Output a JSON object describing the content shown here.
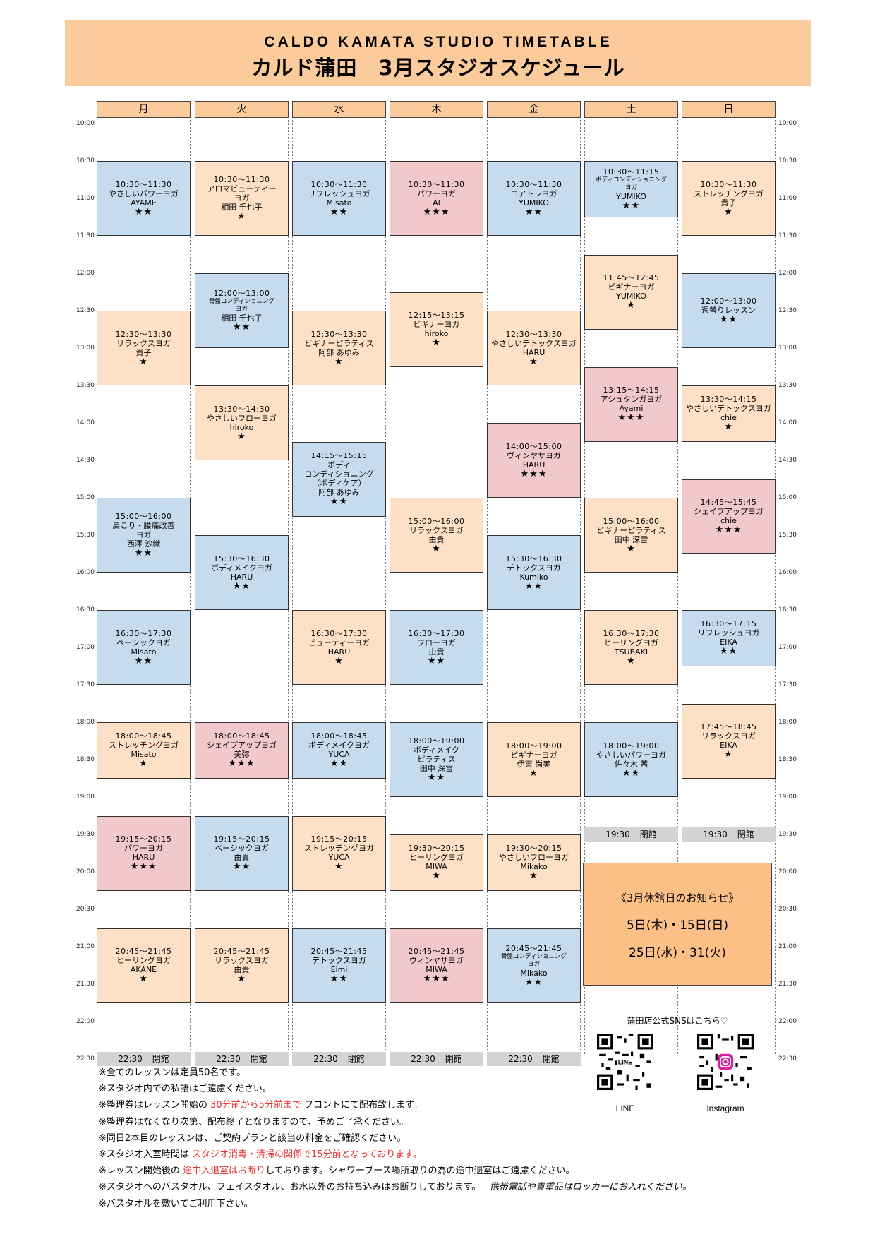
{
  "header": {
    "title_en": "CALDO  KAMATA  STUDIO  TIMETABLE",
    "title_jp": "カルド蒲田　3月スタジオスケジュール"
  },
  "days": [
    "月",
    "火",
    "水",
    "木",
    "金",
    "土",
    "日"
  ],
  "times": [
    "10:00",
    "10:30",
    "11:00",
    "11:30",
    "12:00",
    "12:30",
    "13:00",
    "13:30",
    "14:00",
    "14:30",
    "15:00",
    "15:30",
    "16:00",
    "16:30",
    "17:00",
    "17:30",
    "18:00",
    "18:30",
    "19:00",
    "19:30",
    "20:00",
    "20:30",
    "21:00",
    "21:30",
    "22:00",
    "22:30"
  ],
  "colors": {
    "blue": "#c7dbef",
    "orange": "#fde0c5",
    "pink": "#f2c9cb",
    "header": "#fbcb9c",
    "notice": "#fcbf86",
    "closed": "#d3d3d3",
    "red": "#e53030"
  },
  "lessons": [
    {
      "day": 0,
      "start": "10:30",
      "end": "11:30",
      "color": "blue",
      "time": "10:30～11:30",
      "name": [
        "やさしいパワーヨガ"
      ],
      "instructor": "AYAME",
      "stars": "★★"
    },
    {
      "day": 0,
      "start": "12:30",
      "end": "13:30",
      "color": "orange",
      "time": "12:30～13:30",
      "name": [
        "リラックスヨガ"
      ],
      "instructor": "貴子",
      "stars": "★"
    },
    {
      "day": 0,
      "start": "15:00",
      "end": "16:00",
      "color": "blue",
      "time": "15:00～16:00",
      "name": [
        "肩こり・腰痛改善",
        "ヨガ"
      ],
      "instructor": "西澤 沙織",
      "stars": "★★"
    },
    {
      "day": 0,
      "start": "16:30",
      "end": "17:30",
      "color": "blue",
      "time": "16:30～17:30",
      "name": [
        "ベーシックヨガ"
      ],
      "instructor": "Misato",
      "stars": "★★"
    },
    {
      "day": 0,
      "start": "18:00",
      "end": "18:45",
      "color": "orange",
      "time": "18:00～18:45",
      "name": [
        "ストレッチングヨガ"
      ],
      "instructor": "Misato",
      "stars": "★"
    },
    {
      "day": 0,
      "start": "19:15",
      "end": "20:15",
      "color": "pink",
      "time": "19:15～20:15",
      "name": [
        "パワーヨガ"
      ],
      "instructor": "HARU",
      "stars": "★★★"
    },
    {
      "day": 0,
      "start": "20:45",
      "end": "21:45",
      "color": "orange",
      "time": "20:45～21:45",
      "name": [
        "ヒーリングヨガ"
      ],
      "instructor": "AKANE",
      "stars": "★"
    },
    {
      "day": 1,
      "start": "10:30",
      "end": "11:30",
      "color": "orange",
      "time": "10:30～11:30",
      "name": [
        "アロマビューティー",
        "ヨガ"
      ],
      "instructor": "相田 千也子",
      "stars": "★"
    },
    {
      "day": 1,
      "start": "12:00",
      "end": "13:00",
      "color": "blue",
      "time": "12:00～13:00",
      "name": [
        "骨盤コンディショニング",
        "ヨガ"
      ],
      "small": true,
      "instructor": "相田 千也子",
      "stars": "★★"
    },
    {
      "day": 1,
      "start": "13:30",
      "end": "14:30",
      "color": "orange",
      "time": "13:30～14:30",
      "name": [
        "やさしいフローヨガ"
      ],
      "instructor": "hiroko",
      "stars": "★"
    },
    {
      "day": 1,
      "start": "15:30",
      "end": "16:30",
      "color": "blue",
      "time": "15:30～16:30",
      "name": [
        "ボディメイクヨガ"
      ],
      "instructor": "HARU",
      "stars": "★★"
    },
    {
      "day": 1,
      "start": "18:00",
      "end": "18:45",
      "color": "pink",
      "time": "18:00～18:45",
      "name": [
        "シェイプアップヨガ"
      ],
      "instructor": "美弥",
      "stars": "★★★"
    },
    {
      "day": 1,
      "start": "19:15",
      "end": "20:15",
      "color": "blue",
      "time": "19:15～20:15",
      "name": [
        "ベーシックヨガ"
      ],
      "instructor": "由貴",
      "stars": "★★"
    },
    {
      "day": 1,
      "start": "20:45",
      "end": "21:45",
      "color": "orange",
      "time": "20:45～21:45",
      "name": [
        "リラックスヨガ"
      ],
      "instructor": "由貴",
      "stars": "★"
    },
    {
      "day": 2,
      "start": "10:30",
      "end": "11:30",
      "color": "blue",
      "time": "10:30～11:30",
      "name": [
        "リフレッシュヨガ"
      ],
      "instructor": "Misato",
      "stars": "★★"
    },
    {
      "day": 2,
      "start": "12:30",
      "end": "13:30",
      "color": "orange",
      "time": "12:30～13:30",
      "name": [
        "ビギナーピラティス"
      ],
      "instructor": "阿部 あゆみ",
      "stars": "★"
    },
    {
      "day": 2,
      "start": "14:15",
      "end": "15:15",
      "color": "blue",
      "time": "14:15～15:15",
      "name": [
        "ボディ",
        "コンディショニング",
        "（ボディケア）"
      ],
      "instructor": "阿部 あゆみ",
      "stars": "★★"
    },
    {
      "day": 2,
      "start": "16:30",
      "end": "17:30",
      "color": "orange",
      "time": "16:30～17:30",
      "name": [
        "ビューティーヨガ"
      ],
      "instructor": "HARU",
      "stars": "★"
    },
    {
      "day": 2,
      "start": "18:00",
      "end": "18:45",
      "color": "blue",
      "time": "18:00～18:45",
      "name": [
        "ボディメイクヨガ"
      ],
      "instructor": "YUCA",
      "stars": "★★"
    },
    {
      "day": 2,
      "start": "19:15",
      "end": "20:15",
      "color": "orange",
      "time": "19:15～20:15",
      "name": [
        "ストレッチングヨガ"
      ],
      "instructor": "YUCA",
      "stars": "★"
    },
    {
      "day": 2,
      "start": "20:45",
      "end": "21:45",
      "color": "blue",
      "time": "20:45～21:45",
      "name": [
        "デトックスヨガ"
      ],
      "instructor": "Eimi",
      "stars": "★★"
    },
    {
      "day": 3,
      "start": "10:30",
      "end": "11:30",
      "color": "pink",
      "time": "10:30～11:30",
      "name": [
        "パワーヨガ"
      ],
      "instructor": "AI",
      "stars": "★★★"
    },
    {
      "day": 3,
      "start": "12:15",
      "end": "13:15",
      "color": "orange",
      "time": "12:15～13:15",
      "name": [
        "ビギナーヨガ"
      ],
      "instructor": "hiroko",
      "stars": "★"
    },
    {
      "day": 3,
      "start": "15:00",
      "end": "16:00",
      "color": "orange",
      "time": "15:00～16:00",
      "name": [
        "リラックスヨガ"
      ],
      "instructor": "由貴",
      "stars": "★"
    },
    {
      "day": 3,
      "start": "16:30",
      "end": "17:30",
      "color": "blue",
      "time": "16:30～17:30",
      "name": [
        "フローヨガ"
      ],
      "instructor": "由貴",
      "stars": "★★"
    },
    {
      "day": 3,
      "start": "18:00",
      "end": "19:00",
      "color": "blue",
      "time": "18:00～19:00",
      "name": [
        "ボディメイク",
        "ピラティス"
      ],
      "instructor": "田中 深雪",
      "stars": "★★"
    },
    {
      "day": 3,
      "start": "19:30",
      "end": "20:15",
      "color": "orange",
      "time": "19:30～20:15",
      "name": [
        "ヒーリングヨガ"
      ],
      "instructor": "MIWA",
      "stars": "★"
    },
    {
      "day": 3,
      "start": "20:45",
      "end": "21:45",
      "color": "pink",
      "time": "20:45～21:45",
      "name": [
        "ヴィンヤサヨガ"
      ],
      "instructor": "MIWA",
      "stars": "★★★"
    },
    {
      "day": 4,
      "start": "10:30",
      "end": "11:30",
      "color": "blue",
      "time": "10:30～11:30",
      "name": [
        "コアトレヨガ"
      ],
      "instructor": "YUMIKO",
      "stars": "★★"
    },
    {
      "day": 4,
      "start": "12:30",
      "end": "13:30",
      "color": "orange",
      "time": "12:30～13:30",
      "name": [
        "やさしいデトックスヨガ"
      ],
      "instructor": "HARU",
      "stars": "★"
    },
    {
      "day": 4,
      "start": "14:00",
      "end": "15:00",
      "color": "pink",
      "time": "14:00～15:00",
      "name": [
        "ヴィンヤサヨガ"
      ],
      "instructor": "HARU",
      "stars": "★★★"
    },
    {
      "day": 4,
      "start": "15:30",
      "end": "16:30",
      "color": "blue",
      "time": "15:30～16:30",
      "name": [
        "デトックスヨガ"
      ],
      "instructor": "Kumiko",
      "stars": "★★"
    },
    {
      "day": 4,
      "start": "18:00",
      "end": "19:00",
      "color": "orange",
      "time": "18:00～19:00",
      "name": [
        "ビギナーヨガ"
      ],
      "instructor": "伊東 尚美",
      "stars": "★"
    },
    {
      "day": 4,
      "start": "19:30",
      "end": "20:15",
      "color": "orange",
      "time": "19:30～20:15",
      "name": [
        "やさしいフローヨガ"
      ],
      "instructor": "Mikako",
      "stars": "★"
    },
    {
      "day": 4,
      "start": "20:45",
      "end": "21:45",
      "color": "blue",
      "time": "20:45～21:45",
      "name": [
        "骨盤コンディショニング",
        "ヨガ"
      ],
      "small": true,
      "instructor": "Mikako",
      "stars": "★★"
    },
    {
      "day": 5,
      "start": "10:30",
      "end": "11:15",
      "color": "blue",
      "time": "10:30～11:15",
      "name": [
        "ボディコンディショニング",
        "ヨガ"
      ],
      "small": true,
      "instructor": "YUMIKO",
      "stars": "★★"
    },
    {
      "day": 5,
      "start": "11:45",
      "end": "12:45",
      "color": "orange",
      "time": "11:45～12:45",
      "name": [
        "ビギナーヨガ"
      ],
      "instructor": "YUMIKO",
      "stars": "★"
    },
    {
      "day": 5,
      "start": "13:15",
      "end": "14:15",
      "color": "pink",
      "time": "13:15～14:15",
      "name": [
        "アシュタンガヨガ"
      ],
      "instructor": "Ayami",
      "stars": "★★★"
    },
    {
      "day": 5,
      "start": "15:00",
      "end": "16:00",
      "color": "orange",
      "time": "15:00～16:00",
      "name": [
        "ビギナーピラティス"
      ],
      "instructor": "田中 深雪",
      "stars": "★"
    },
    {
      "day": 5,
      "start": "16:30",
      "end": "17:30",
      "color": "orange",
      "time": "16:30～17:30",
      "name": [
        "ヒーリングヨガ"
      ],
      "instructor": "TSUBAKI",
      "stars": "★"
    },
    {
      "day": 5,
      "start": "18:00",
      "end": "19:00",
      "color": "blue",
      "time": "18:00～19:00",
      "name": [
        "やさしいパワーヨガ"
      ],
      "instructor": "佐々木 茜",
      "stars": "★★"
    },
    {
      "day": 6,
      "start": "10:30",
      "end": "11:30",
      "color": "orange",
      "time": "10:30～11:30",
      "name": [
        "ストレッチングヨガ"
      ],
      "instructor": "貴子",
      "stars": "★"
    },
    {
      "day": 6,
      "start": "12:00",
      "end": "13:00",
      "color": "blue",
      "time": "12:00～13:00",
      "name": [
        "週替りレッスン"
      ],
      "instructor": "",
      "stars": "★★"
    },
    {
      "day": 6,
      "start": "13:30",
      "end": "14:15",
      "color": "orange",
      "time": "13:30～14:15",
      "name": [
        "やさしいデトックスヨガ"
      ],
      "instructor": "chie",
      "stars": "★"
    },
    {
      "day": 6,
      "start": "14:45",
      "end": "15:45",
      "color": "pink",
      "time": "14:45～15:45",
      "name": [
        "シェイプアップヨガ"
      ],
      "instructor": "chie",
      "stars": "★★★"
    },
    {
      "day": 6,
      "start": "16:30",
      "end": "17:15",
      "color": "blue",
      "time": "16:30～17:15",
      "name": [
        "リフレッシュヨガ"
      ],
      "instructor": "EIKA",
      "stars": "★★"
    },
    {
      "day": 6,
      "start": "17:45",
      "end": "18:45",
      "color": "orange",
      "time": "17:45～18:45",
      "name": [
        "リラックスヨガ"
      ],
      "instructor": "EIKA",
      "stars": "★"
    }
  ],
  "closings": [
    {
      "day": 0,
      "time": "22:30",
      "label": "閉館"
    },
    {
      "day": 1,
      "time": "22:30",
      "label": "閉館"
    },
    {
      "day": 2,
      "time": "22:30",
      "label": "閉館"
    },
    {
      "day": 3,
      "time": "22:30",
      "label": "閉館"
    },
    {
      "day": 4,
      "time": "22:30",
      "label": "閉館"
    },
    {
      "day": 5,
      "time": "19:30",
      "label": "閉館"
    },
    {
      "day": 6,
      "time": "19:30",
      "label": "閉館"
    }
  ],
  "notice": {
    "title": "《3月休館日のお知らせ》",
    "dates1": "5日(木)・15日(日)",
    "dates2": "25日(水)・31(火)"
  },
  "sns": {
    "title": "蒲田店公式SNSはこちら♡",
    "line_label": "LINE",
    "insta_label": "Instagram"
  },
  "notes": {
    "n1": "※全てのレッスンは定員50名です。",
    "n2": "※スタジオ内での私語はご遠慮ください。",
    "n3a": "※整理券はレッスン開始の",
    "n3b": "30分前から5分前まで",
    "n3c": "フロントにて配布致します。",
    "n4": "※整理券はなくなり次第、配布終了となりますので、予めご了承ください。",
    "n5": "※同日2本目のレッスンは、ご契約プランと該当の料金をご確認ください。",
    "n6a": "※スタジオ入室時間は",
    "n6b": "スタジオ消毒・清掃の関係で15分前となっております。",
    "n7a": "※レッスン開始後の",
    "n7b": "途中入退室はお断り",
    "n7c": "しております。シャワーブース場所取りの為の途中退室はご遠慮ください。",
    "n8a": "※スタジオへのバスタオル、フェイスタオル、お水以外のお持ち込みはお断りしております。",
    "n8b": "携帯電話や貴重品はロッカーにお入れください。",
    "n9": "※バスタオルを敷いてご利用下さい。"
  }
}
